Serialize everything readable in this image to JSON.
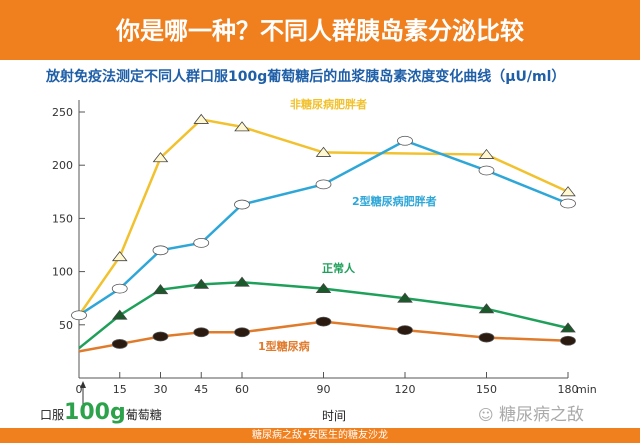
{
  "header": {
    "title": "你是哪一种？不同人群胰岛素分泌比较"
  },
  "footer": {
    "text": "糖尿病之敌•安医生的糖友沙龙"
  },
  "watermark": {
    "icon": "wechat-icon",
    "text": "糖尿病之敌"
  },
  "annotation": {
    "prefix": "口服",
    "amount": "100g",
    "suffix": "葡萄糖"
  },
  "chart_data": {
    "type": "line",
    "title": "放射免疫法测定不同人群口服100g葡萄糖后的血浆胰岛素浓度变化曲线（μU/ml）",
    "xlabel": "时间",
    "xunit": "min",
    "ylabel": "",
    "x": [
      0,
      15,
      30,
      45,
      60,
      90,
      120,
      150,
      180
    ],
    "xticks": [
      "0",
      "15",
      "30",
      "45",
      "60",
      "90",
      "120",
      "150",
      "180"
    ],
    "yticks": [
      "50",
      "100",
      "150",
      "200",
      "250"
    ],
    "xlim": [
      0,
      180
    ],
    "ylim": [
      0,
      260
    ],
    "grid": false,
    "series": [
      {
        "name": "非糖尿病肥胖者",
        "color": "#f2c12e",
        "marker": "triangle-open",
        "points": [
          [
            0,
            59
          ],
          [
            15,
            114
          ],
          [
            30,
            207
          ],
          [
            45,
            243
          ],
          [
            60,
            236
          ],
          [
            90,
            212
          ],
          [
            150,
            210
          ],
          [
            180,
            175
          ]
        ]
      },
      {
        "name": "2型糖尿病肥胖者",
        "color": "#2ea7d8",
        "marker": "circle-open",
        "points": [
          [
            0,
            59
          ],
          [
            15,
            84
          ],
          [
            30,
            120
          ],
          [
            45,
            127
          ],
          [
            60,
            163
          ],
          [
            90,
            182
          ],
          [
            120,
            223
          ],
          [
            150,
            195
          ],
          [
            180,
            164
          ]
        ]
      },
      {
        "name": "正常人",
        "color": "#1fa05a",
        "marker": "triangle-filled",
        "points": [
          [
            0,
            28
          ],
          [
            15,
            59
          ],
          [
            30,
            83
          ],
          [
            45,
            88
          ],
          [
            60,
            90
          ],
          [
            90,
            84
          ],
          [
            120,
            75
          ],
          [
            150,
            65
          ],
          [
            180,
            47
          ]
        ]
      },
      {
        "name": "1型糖尿病",
        "color": "#e07b2c",
        "marker": "circle-filled",
        "points": [
          [
            0,
            25
          ],
          [
            15,
            32
          ],
          [
            30,
            39
          ],
          [
            45,
            43
          ],
          [
            60,
            43
          ],
          [
            90,
            53
          ],
          [
            120,
            45
          ],
          [
            150,
            38
          ],
          [
            180,
            35
          ]
        ]
      }
    ]
  }
}
